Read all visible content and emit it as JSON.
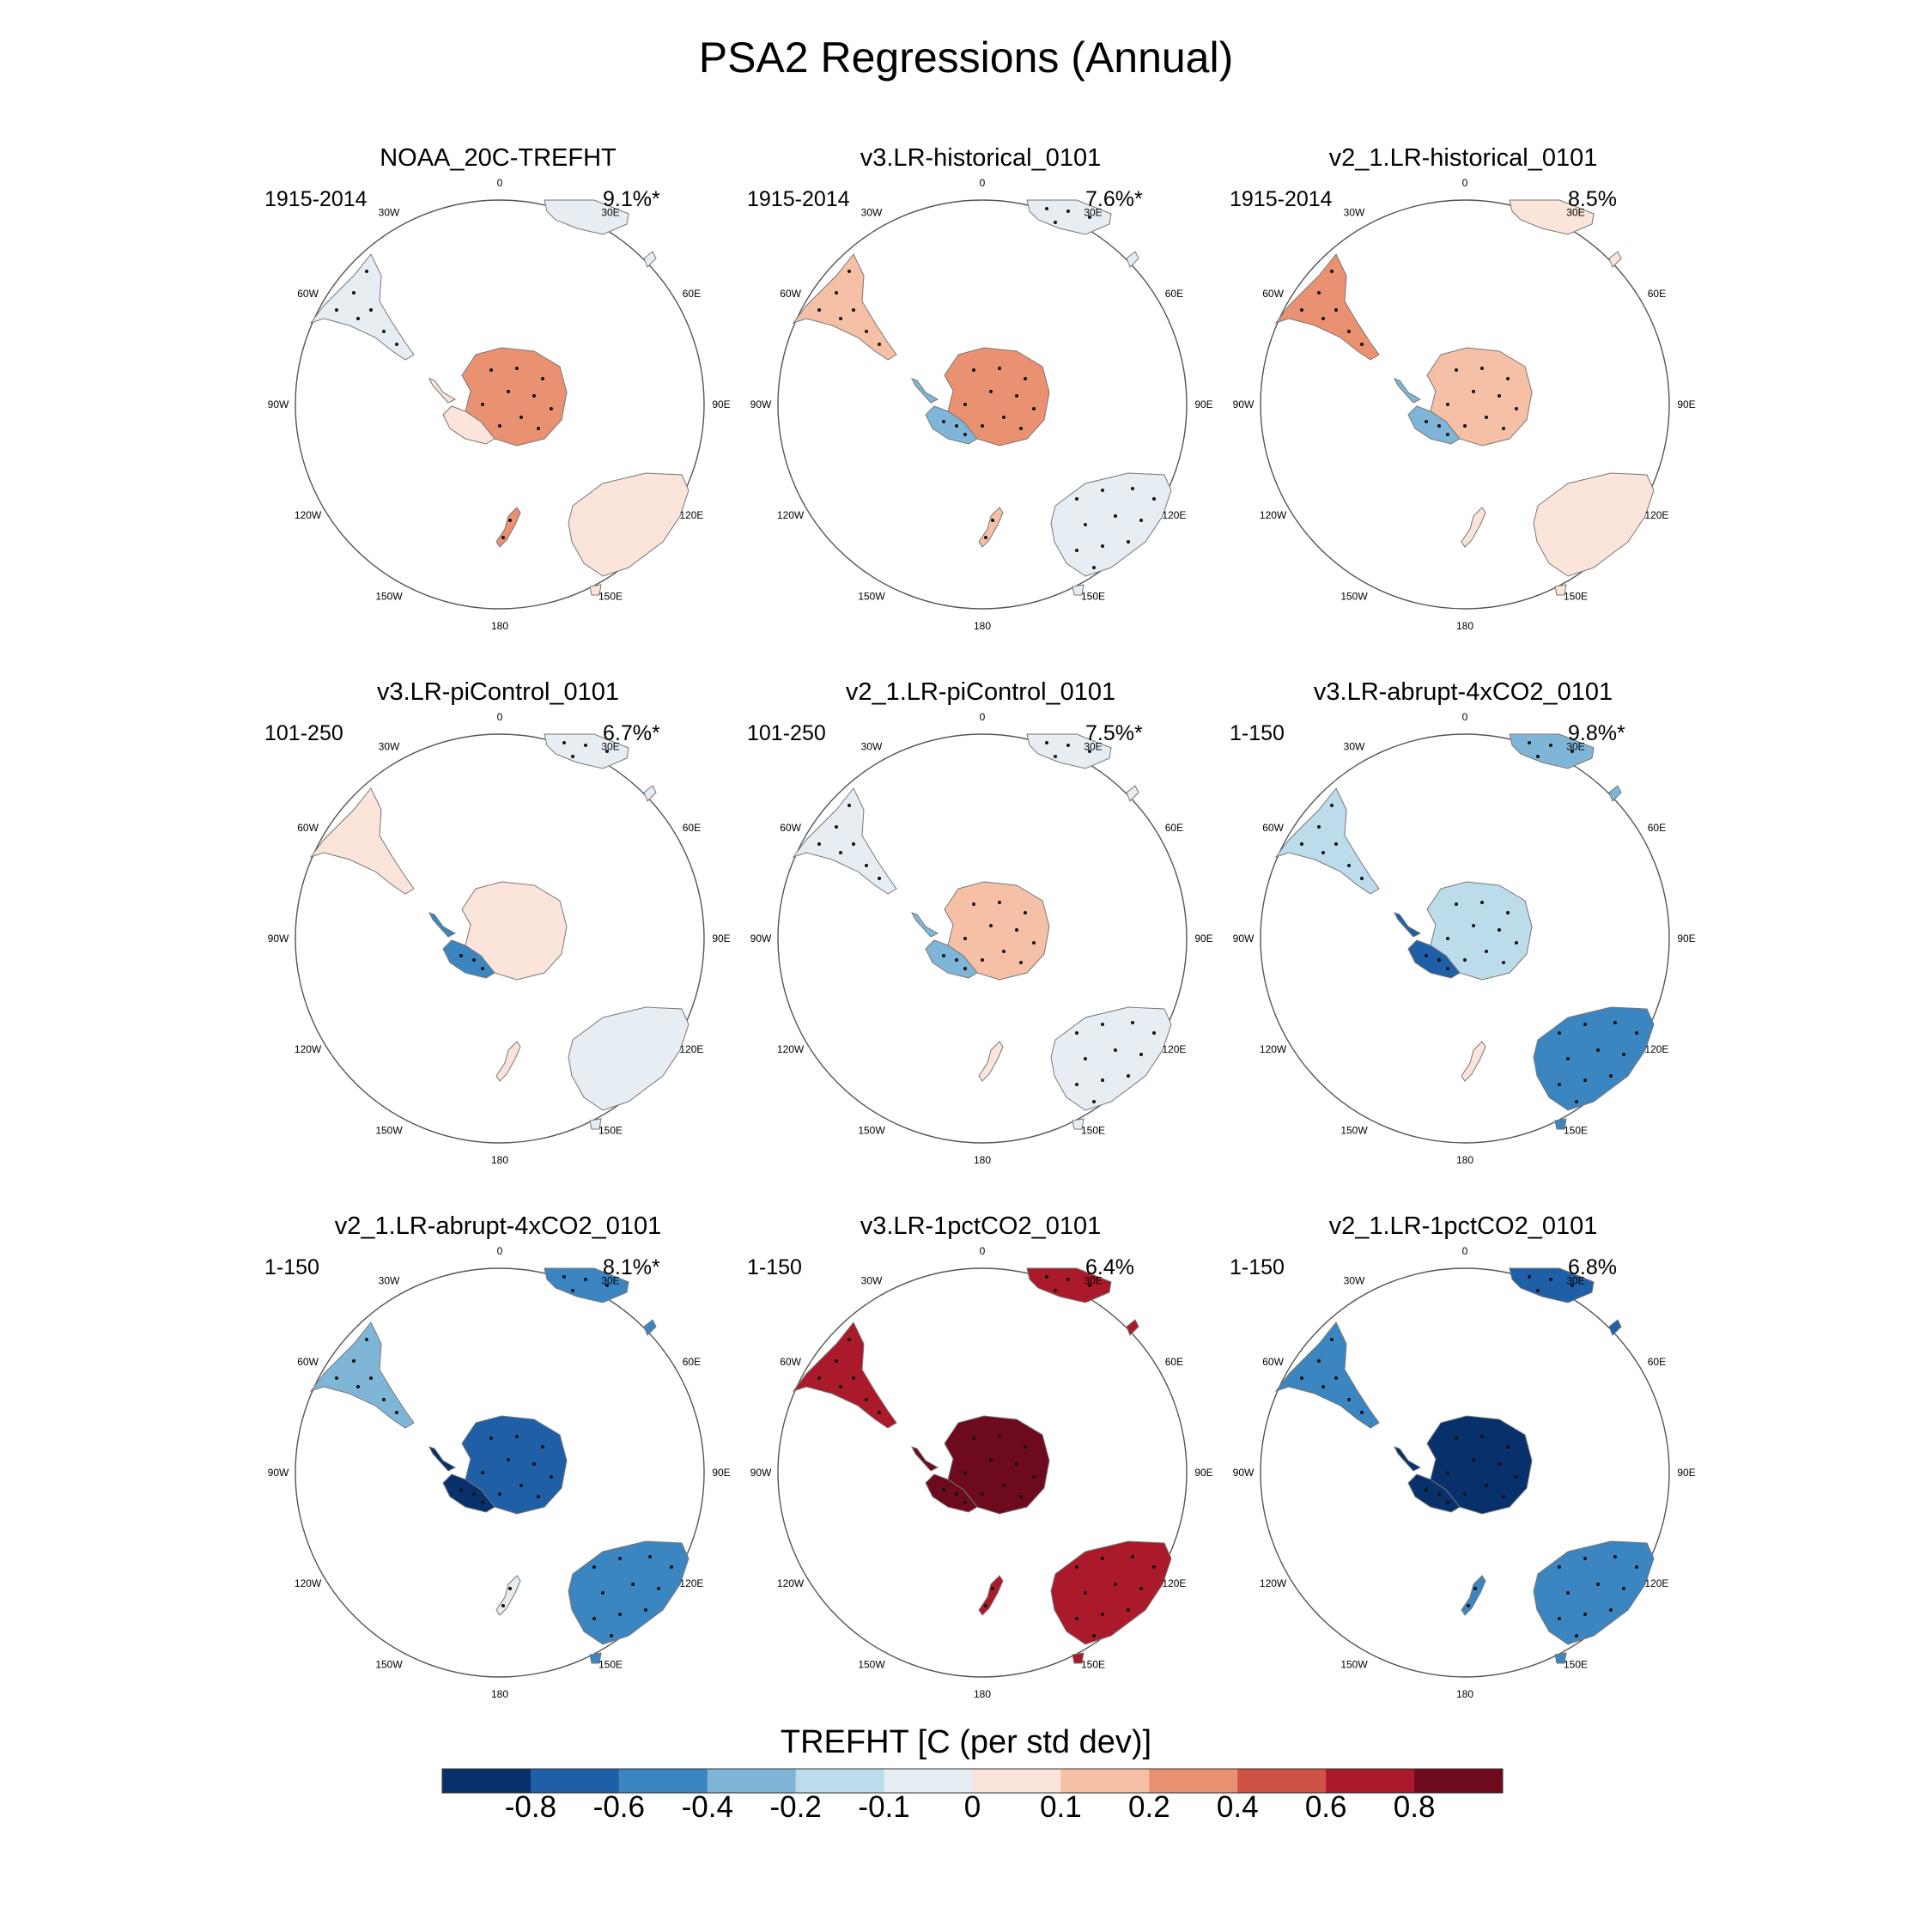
{
  "title": "PSA2 Regressions (Annual)",
  "chart_data": {
    "type": "polar-map-panels",
    "variable_label": "TREFHT [C (per std dev)]",
    "longitude_labels": [
      "0",
      "30E",
      "60E",
      "90E",
      "120E",
      "150E",
      "180",
      "150W",
      "120W",
      "90W",
      "60W",
      "30W"
    ],
    "colorbar": {
      "colors": [
        "#08306b",
        "#1f5fa8",
        "#3b86c0",
        "#7fb6d8",
        "#bcdcec",
        "#e6eef4",
        "#fbe4da",
        "#f6c0a6",
        "#ea9172",
        "#ce5245",
        "#ab1a2a",
        "#6d0a1e"
      ],
      "tick_labels": [
        "-0.8",
        "-0.6",
        "-0.4",
        "-0.2",
        "-0.1",
        "0",
        "0.1",
        "0.2",
        "0.4",
        "0.6",
        "0.8"
      ]
    },
    "panels": [
      {
        "title": "NOAA_20C-TREFHT",
        "period": "1915-2014",
        "variance": "9.1%*",
        "fills": {
          "antarctica": 0.25,
          "antarctica_w": 0.0,
          "south_america": -0.1,
          "africa": -0.05,
          "australia": 0.08,
          "new_zealand": 0.2
        }
      },
      {
        "title": "v3.LR-historical_0101",
        "period": "1915-2014",
        "variance": "7.6%*",
        "fills": {
          "antarctica": 0.25,
          "antarctica_w": -0.4,
          "south_america": 0.15,
          "africa": -0.1,
          "australia": -0.1,
          "new_zealand": 0.1
        }
      },
      {
        "title": "v2_1.LR-historical_0101",
        "period": "1915-2014",
        "variance": "8.5%",
        "fills": {
          "antarctica": 0.1,
          "antarctica_w": -0.4,
          "south_america": 0.2,
          "africa": 0.05,
          "australia": 0.08,
          "new_zealand": 0.0
        }
      },
      {
        "title": "v3.LR-piControl_0101",
        "period": "101-250",
        "variance": "6.7%*",
        "fills": {
          "antarctica": 0.05,
          "antarctica_w": -0.5,
          "south_america": 0.08,
          "africa": -0.1,
          "australia": -0.05,
          "new_zealand": 0.0
        }
      },
      {
        "title": "v2_1.LR-piControl_0101",
        "period": "101-250",
        "variance": "7.5%*",
        "fills": {
          "antarctica": 0.15,
          "antarctica_w": -0.4,
          "south_america": -0.1,
          "africa": -0.1,
          "australia": -0.1,
          "new_zealand": 0.0
        }
      },
      {
        "title": "v3.LR-abrupt-4xCO2_0101",
        "period": "1-150",
        "variance": "9.8%*",
        "fills": {
          "antarctica": -0.2,
          "antarctica_w": -0.8,
          "south_america": -0.2,
          "africa": -0.4,
          "australia": -0.45,
          "new_zealand": 0.0
        }
      },
      {
        "title": "v2_1.LR-abrupt-4xCO2_0101",
        "period": "1-150",
        "variance": "8.1%*",
        "fills": {
          "antarctica": -0.7,
          "antarctica_w": -0.85,
          "south_america": -0.4,
          "africa": -0.6,
          "australia": -0.6,
          "new_zealand": -0.1
        }
      },
      {
        "title": "v3.LR-1pctCO2_0101",
        "period": "1-150",
        "variance": "6.4%",
        "fills": {
          "antarctica": 0.9,
          "antarctica_w": 0.9,
          "south_america": 0.6,
          "africa": 0.7,
          "australia": 0.6,
          "new_zealand": 0.6
        }
      },
      {
        "title": "v2_1.LR-1pctCO2_0101",
        "period": "1-150",
        "variance": "6.8%",
        "fills": {
          "antarctica": -0.9,
          "antarctica_w": -0.9,
          "south_america": -0.6,
          "africa": -0.7,
          "australia": -0.6,
          "new_zealand": -0.6
        }
      }
    ]
  }
}
